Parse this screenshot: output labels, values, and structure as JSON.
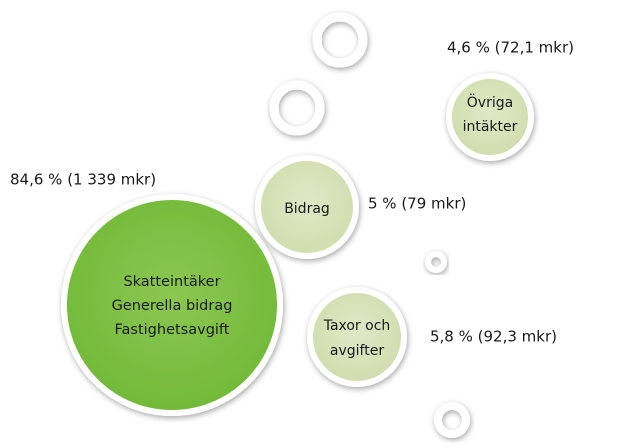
{
  "nodes": [
    {
      "lines": [
        "Skatteintäker",
        "Generella bidrag",
        "Fastighetsavgift"
      ],
      "value": "84,6 % (1 339 mkr)"
    },
    {
      "lines": [
        "Bidrag"
      ],
      "value": "5 % (79 mkr)"
    },
    {
      "lines": [
        "Övriga",
        "intäkter"
      ],
      "value": "4,6 % (72,1 mkr)"
    },
    {
      "lines": [
        "Taxor och",
        "avgifter"
      ],
      "value": "5,8 % (92,3 mkr)"
    }
  ]
}
